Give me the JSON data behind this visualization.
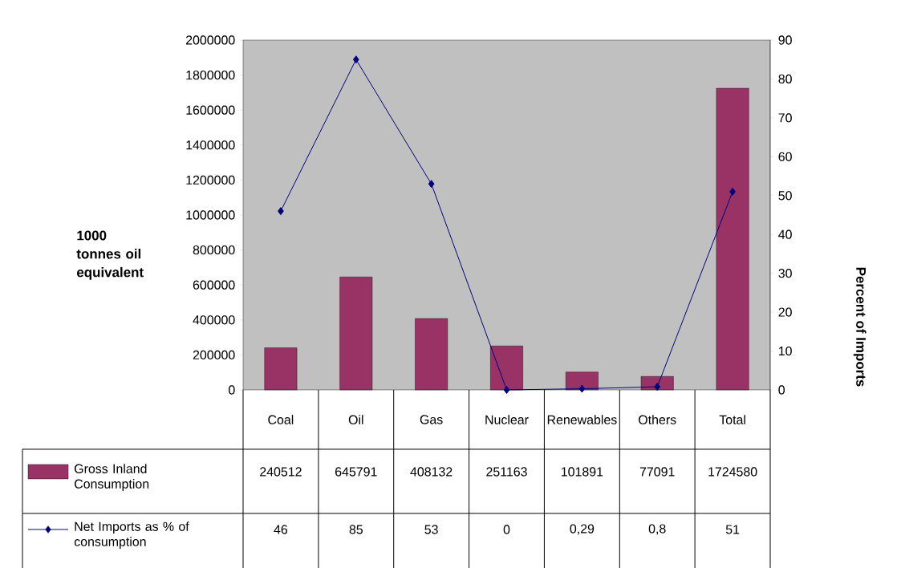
{
  "chart_data": {
    "type": "bar",
    "categories": [
      "Coal",
      "Oil",
      "Gas",
      "Nuclear",
      "Renewables",
      "Others",
      "Total"
    ],
    "series": [
      {
        "name": "Gross Inland Consumption",
        "color": "#993366",
        "values": [
          240512,
          645791,
          408132,
          251163,
          101891,
          77091,
          1724580
        ],
        "value_labels": [
          "240512",
          "645791",
          "408132",
          "251163",
          "101891",
          "77091",
          "1724580"
        ]
      },
      {
        "name": "Net Imports as % of consumption",
        "type": "line",
        "axis": "y2",
        "color": "#000080",
        "marker": "diamond",
        "values": [
          46,
          85,
          53,
          0,
          0.29,
          0.8,
          51
        ],
        "value_labels": [
          "46",
          "85",
          "53",
          "0",
          "0,29",
          "0,8",
          "51"
        ]
      }
    ],
    "ylabel": "1000 tonnes oil equivalent",
    "y2label": "Percent of Imports",
    "ylim": [
      0,
      2000000
    ],
    "yticks": [
      0,
      200000,
      400000,
      600000,
      800000,
      1000000,
      1200000,
      1400000,
      1600000,
      1800000,
      2000000
    ],
    "y2lim": [
      0,
      90
    ],
    "y2ticks": [
      0,
      10,
      20,
      30,
      40,
      50,
      60,
      70,
      80,
      90
    ],
    "legend": "bottom"
  }
}
